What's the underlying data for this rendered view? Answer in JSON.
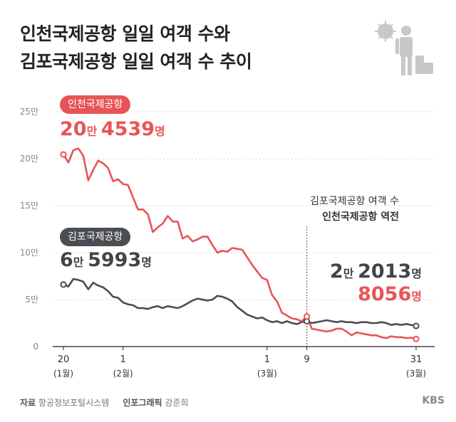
{
  "title_line1": "인천국제공항 일일 여객 수와",
  "title_line2": "김포국제공항 일일 여객 수 추이",
  "labels": {
    "icn_name": "인천국제공항",
    "icn_start_num1": "20",
    "icn_start_unit1": "만",
    "icn_start_num2": "4539",
    "icn_start_unit2": "명",
    "gmp_name": "김포국제공항",
    "gmp_start_num1": "6",
    "gmp_start_unit1": "만",
    "gmp_start_num2": "5993",
    "gmp_start_unit2": "명",
    "gmp_end_num1": "2",
    "gmp_end_unit1": "만",
    "gmp_end_num2": "2013",
    "gmp_end_unit2": "명",
    "icn_end_num": "8056",
    "icn_end_unit": "명"
  },
  "annotation": {
    "line1": "김포국제공항 여객 수",
    "line2": "인천국제공항 역전"
  },
  "footer": {
    "source_label": "자료",
    "source": "항공정보포털시스템",
    "graphic_label": "인포그래픽",
    "graphic": "강준희"
  },
  "logo": "KBS",
  "chart_data": {
    "type": "line",
    "ylim": [
      0,
      25
    ],
    "y_ticks": [
      "0",
      "5만",
      "10만",
      "15만",
      "20만",
      "25만"
    ],
    "x_ticks": [
      {
        "label": "20",
        "sub": "(1월)"
      },
      {
        "label": "1",
        "sub": "(2월)"
      },
      {
        "label": "1",
        "sub": "(3월)"
      },
      {
        "label": "9",
        "sub": ""
      },
      {
        "label": "31",
        "sub": "(3월)"
      }
    ],
    "x_tick_days": [
      0,
      12,
      41,
      49,
      71
    ],
    "crossover_day": 49,
    "colors": {
      "icn": "#e85456",
      "gmp": "#4a4d52"
    },
    "series": [
      {
        "name": "인천국제공항",
        "values": [
          20.45,
          19.6,
          20.9,
          21.1,
          20.3,
          17.7,
          18.8,
          19.8,
          19.5,
          19.0,
          17.6,
          17.8,
          17.3,
          17.2,
          15.9,
          14.6,
          14.6,
          14.1,
          12.2,
          12.7,
          13.1,
          13.9,
          13.3,
          13.3,
          11.5,
          11.8,
          11.2,
          11.4,
          11.7,
          11.7,
          10.8,
          10.0,
          10.2,
          10.1,
          10.5,
          10.4,
          10.3,
          9.5,
          8.7,
          8.0,
          7.3,
          7.1,
          5.5,
          4.8,
          3.6,
          3.3,
          3.0,
          2.9,
          2.7,
          3.2,
          1.9,
          1.8,
          1.7,
          1.6,
          1.7,
          1.9,
          1.9,
          1.6,
          1.2,
          1.5,
          1.4,
          1.3,
          1.2,
          1.2,
          1.0,
          0.9,
          1.1,
          1.0,
          1.0,
          0.9,
          0.95,
          0.81
        ]
      },
      {
        "name": "김포국제공항",
        "values": [
          6.6,
          6.4,
          7.2,
          7.1,
          6.9,
          6.1,
          6.8,
          6.5,
          6.3,
          5.9,
          5.3,
          5.2,
          4.7,
          4.5,
          4.4,
          4.1,
          4.1,
          4.0,
          4.2,
          4.3,
          4.1,
          4.3,
          4.2,
          4.1,
          4.3,
          4.6,
          4.9,
          5.1,
          5.0,
          4.9,
          5.0,
          5.4,
          5.3,
          5.1,
          4.8,
          4.2,
          3.8,
          3.4,
          3.2,
          3.0,
          3.1,
          2.8,
          2.6,
          2.7,
          2.5,
          2.7,
          2.5,
          2.4,
          2.6,
          2.7,
          2.5,
          2.6,
          2.7,
          2.8,
          2.7,
          2.6,
          2.7,
          2.6,
          2.6,
          2.5,
          2.6,
          2.6,
          2.5,
          2.5,
          2.6,
          2.5,
          2.3,
          2.4,
          2.3,
          2.4,
          2.3,
          2.2
        ]
      }
    ]
  }
}
